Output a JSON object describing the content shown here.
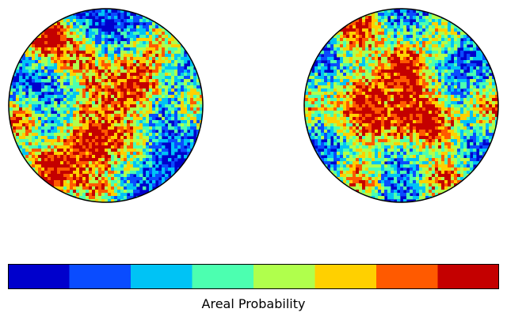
{
  "chart_data": [
    {
      "type": "heatmap",
      "projection": "equal-area pole figure",
      "levels": 8,
      "hotspots": [
        {
          "azimuth_deg": 40,
          "radius": 0.45,
          "intensity": 0.65
        },
        {
          "azimuth_deg": 115,
          "radius": 0.45,
          "intensity": 0.6
        },
        {
          "azimuth_deg": 245,
          "radius": 0.45,
          "intensity": 0.7
        },
        {
          "azimuth_deg": 300,
          "radius": 0.45,
          "intensity": 0.55
        },
        {
          "azimuth_deg": 130,
          "radius": 0.92,
          "intensity": 0.95
        },
        {
          "azimuth_deg": 230,
          "radius": 0.9,
          "intensity": 0.9
        },
        {
          "azimuth_deg": 190,
          "radius": 0.95,
          "intensity": 0.75
        },
        {
          "azimuth_deg": 265,
          "radius": 0.92,
          "intensity": 0.6
        },
        {
          "azimuth_deg": 0,
          "radius": 0.95,
          "intensity": 0.55
        },
        {
          "azimuth_deg": 50,
          "radius": 0.9,
          "intensity": 0.5
        },
        {
          "azimuth_deg": 20,
          "radius": 0.2,
          "intensity": 0.4
        },
        {
          "azimuth_deg": 200,
          "radius": 0.2,
          "intensity": 0.4
        }
      ]
    },
    {
      "type": "heatmap",
      "projection": "equal-area pole figure",
      "levels": 8,
      "hotspots": [
        {
          "azimuth_deg": 85,
          "radius": 0.42,
          "intensity": 0.8
        },
        {
          "azimuth_deg": 160,
          "radius": 0.42,
          "intensity": 0.65
        },
        {
          "azimuth_deg": 210,
          "radius": 0.42,
          "intensity": 0.6
        },
        {
          "azimuth_deg": 330,
          "radius": 0.42,
          "intensity": 0.7
        },
        {
          "azimuth_deg": 120,
          "radius": 0.92,
          "intensity": 0.9
        },
        {
          "azimuth_deg": 0,
          "radius": 0.95,
          "intensity": 0.7
        },
        {
          "azimuth_deg": 240,
          "radius": 0.9,
          "intensity": 0.7
        },
        {
          "azimuth_deg": 300,
          "radius": 0.9,
          "intensity": 0.75
        },
        {
          "azimuth_deg": 180,
          "radius": 0.93,
          "intensity": 0.55
        },
        {
          "azimuth_deg": 60,
          "radius": 0.92,
          "intensity": 0.45
        },
        {
          "azimuth_deg": 270,
          "radius": 0.2,
          "intensity": 0.4
        },
        {
          "azimuth_deg": 30,
          "radius": 0.2,
          "intensity": 0.4
        }
      ]
    }
  ],
  "colorbar": {
    "label": "Areal Probability",
    "colors": [
      "#0000cc",
      "#0a4cff",
      "#00c3f5",
      "#4cffb0",
      "#b0ff4c",
      "#ffd000",
      "#ff5a00",
      "#c40000"
    ]
  }
}
